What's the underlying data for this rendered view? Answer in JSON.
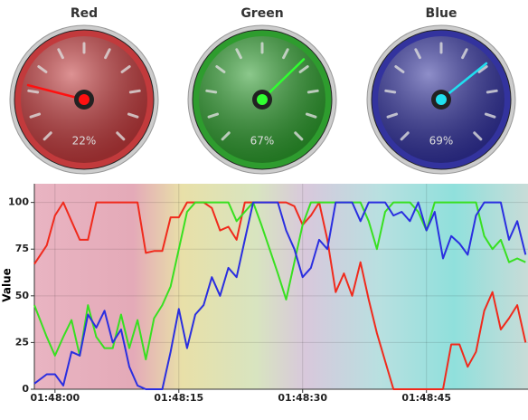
{
  "chart_data": [
    {
      "type": "gauge",
      "range": [
        0,
        100
      ],
      "gauges": [
        {
          "name": "Red",
          "value": 22,
          "value_label": "22%",
          "color": "#c23a3c",
          "needle": "#ff1010"
        },
        {
          "name": "Green",
          "value": 67,
          "value_label": "67%",
          "color": "#2e9c2e",
          "needle": "#30ff30"
        },
        {
          "name": "Blue",
          "value": 69,
          "value_label": "69%",
          "color": "#33339e",
          "needle": "#20e0f0"
        }
      ]
    },
    {
      "type": "line",
      "y_label": "Value",
      "x": [
        -2.5,
        -1,
        0,
        1,
        2,
        3,
        4,
        5,
        6,
        7,
        8,
        9,
        10,
        11,
        12,
        13,
        14,
        15,
        16,
        17,
        18,
        19,
        20,
        21,
        22,
        23,
        24,
        25,
        26,
        27,
        28,
        29,
        30,
        31,
        32,
        33,
        34,
        35,
        36,
        37,
        38,
        39,
        40,
        41,
        42,
        43,
        44,
        45,
        46,
        47,
        48,
        49,
        50,
        51,
        52,
        53,
        54,
        55,
        56,
        57
      ],
      "xlim": [
        -2.5,
        57.3
      ],
      "xticks": [
        {
          "value": 0,
          "label": "01:48:00"
        },
        {
          "value": 15,
          "label": "01:48:15"
        },
        {
          "value": 30,
          "label": "01:48:30"
        },
        {
          "value": 45,
          "label": "01:48:45"
        }
      ],
      "ylim": [
        0,
        110
      ],
      "yticks": [
        0,
        25,
        50,
        75,
        100
      ],
      "grid": true,
      "series": [
        {
          "name": "Red",
          "color": "#f02a1c",
          "values": [
            67,
            77,
            93,
            100,
            90,
            80,
            80,
            100,
            100,
            100,
            100,
            100,
            100,
            73,
            74,
            74,
            92,
            92,
            100,
            100,
            100,
            97,
            85,
            87,
            80,
            100,
            100,
            100,
            100,
            100,
            100,
            98,
            88,
            93,
            100,
            80,
            52,
            62,
            50,
            68,
            48,
            30,
            15,
            0,
            0,
            0,
            0,
            0,
            0,
            0,
            24,
            24,
            12,
            20,
            42,
            52,
            32,
            38,
            45,
            25
          ]
        },
        {
          "name": "Green",
          "color": "#38e020",
          "values": [
            45,
            28,
            18,
            28,
            37,
            18,
            45,
            28,
            22,
            22,
            40,
            22,
            37,
            16,
            38,
            45,
            55,
            75,
            95,
            100,
            100,
            100,
            100,
            100,
            90,
            95,
            100,
            88,
            75,
            62,
            48,
            68,
            88,
            100,
            100,
            100,
            100,
            100,
            100,
            100,
            90,
            75,
            95,
            100,
            100,
            100,
            95,
            85,
            100,
            100,
            100,
            100,
            100,
            100,
            82,
            75,
            80,
            68,
            70,
            68
          ]
        },
        {
          "name": "Blue",
          "color": "#2a2ee0",
          "values": [
            3,
            8,
            8,
            2,
            20,
            18,
            40,
            33,
            42,
            25,
            32,
            12,
            2,
            0,
            0,
            0,
            20,
            43,
            22,
            40,
            45,
            60,
            50,
            65,
            60,
            80,
            100,
            100,
            100,
            100,
            85,
            75,
            60,
            65,
            80,
            75,
            100,
            100,
            100,
            90,
            100,
            100,
            100,
            93,
            95,
            90,
            100,
            85,
            95,
            70,
            82,
            78,
            72,
            93,
            100,
            100,
            100,
            80,
            90,
            72
          ]
        }
      ]
    }
  ]
}
